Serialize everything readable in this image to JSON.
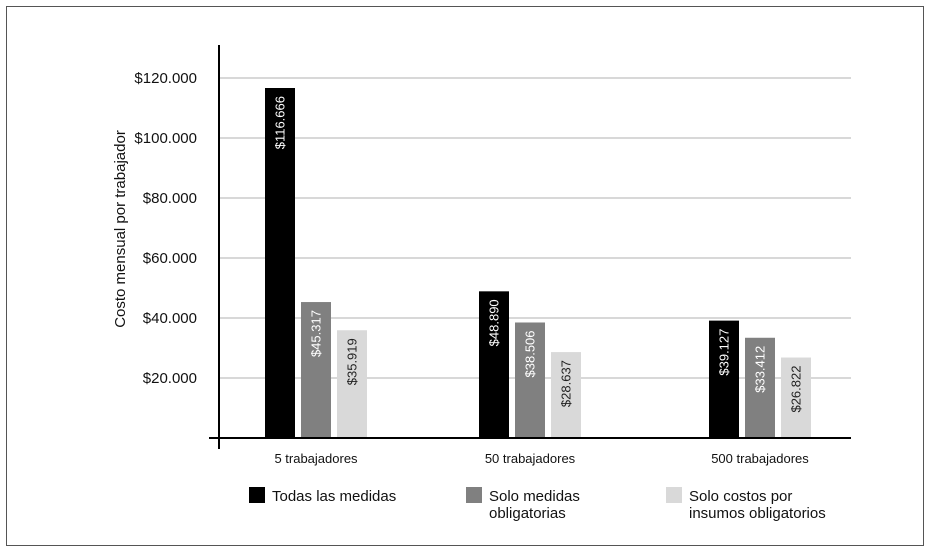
{
  "chart_data": {
    "type": "bar",
    "title": "",
    "xlabel": "",
    "ylabel": "Costo mensual por trabajador",
    "ylim": [
      0,
      130000
    ],
    "yticks": [
      20000,
      40000,
      60000,
      80000,
      100000,
      120000
    ],
    "ytick_labels": [
      "$20.000",
      "$40.000",
      "$60.000",
      "$80.000",
      "$100.000",
      "$120.000"
    ],
    "grid": true,
    "legend_position": "bottom",
    "categories": [
      "5 trabajadores",
      "50 trabajadores",
      "500 trabajadores"
    ],
    "series": [
      {
        "name": "Todas las medidas",
        "color": "#000000",
        "label_color": "#ffffff",
        "values": [
          116666,
          48890,
          39127
        ],
        "labels": [
          "$116.666",
          "$48.890",
          "$39.127"
        ]
      },
      {
        "name": "Solo medidas obligatorias",
        "color": "#808080",
        "label_color": "#ffffff",
        "values": [
          45317,
          38506,
          33412
        ],
        "labels": [
          "$45.317",
          "$38.506",
          "$33.412"
        ]
      },
      {
        "name": "Solo costos por insumos obligatorios",
        "color": "#d9d9d9",
        "label_color": "#222222",
        "values": [
          35919,
          28637,
          26822
        ],
        "labels": [
          "$35.919",
          "$28.637",
          "$26.822"
        ]
      }
    ],
    "legend": [
      {
        "lines": [
          "Todas las medidas"
        ]
      },
      {
        "lines": [
          "Solo medidas",
          "obligatorias"
        ]
      },
      {
        "lines": [
          "Solo costos por",
          "insumos obligatorios"
        ]
      }
    ]
  }
}
